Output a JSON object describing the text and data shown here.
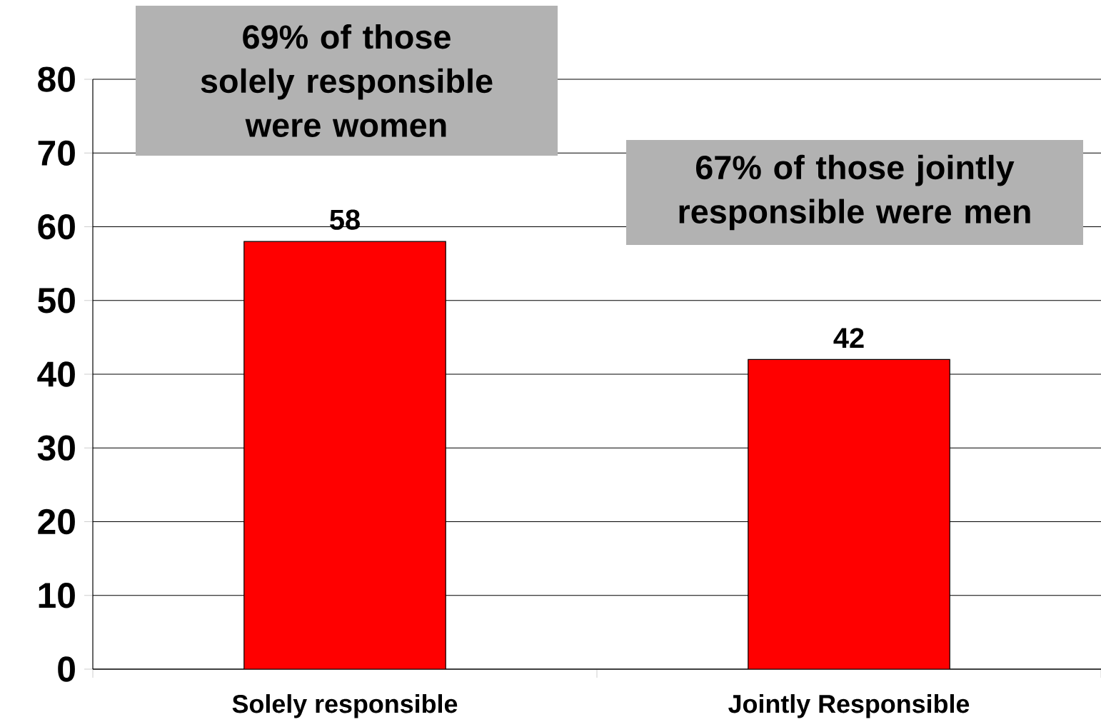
{
  "chart_data": {
    "type": "bar",
    "categories": [
      "Solely responsible",
      "Jointly Responsible"
    ],
    "values": [
      58,
      42
    ],
    "color": "#ff0000",
    "ylim": [
      0,
      80
    ],
    "yticks": [
      0,
      10,
      20,
      30,
      40,
      50,
      60,
      70,
      80
    ],
    "grid": "y",
    "data_labels": true,
    "annotations": [
      "69% of those solely responsible were women",
      "67% of those jointly responsible were men"
    ]
  }
}
